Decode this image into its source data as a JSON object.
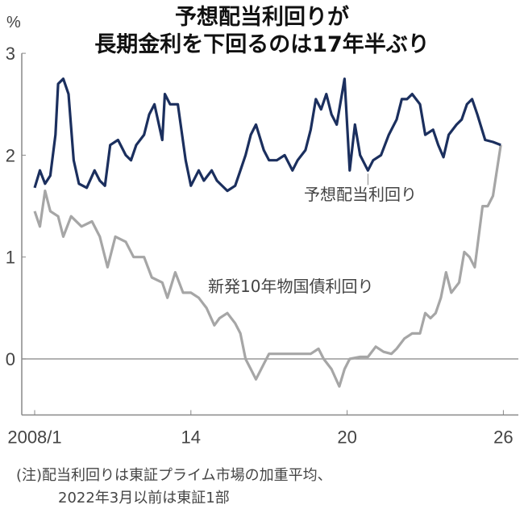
{
  "chart_data": {
    "type": "line",
    "title_lines": [
      "予想配当利回りが",
      "長期金利を下回るのは17年半ぶり"
    ],
    "y_unit": "%",
    "ylim": [
      -0.55,
      3
    ],
    "yticks": [
      0,
      1,
      2,
      3
    ],
    "xlim": [
      2007.95,
      2026.0
    ],
    "xticks": [
      {
        "value": 2008,
        "label": "2008/1"
      },
      {
        "value": 2014,
        "label": "14"
      },
      {
        "value": 2020,
        "label": "20"
      },
      {
        "value": 2026,
        "label": "26"
      }
    ],
    "grid": false,
    "zero_line": true,
    "series": [
      {
        "name": "予想配当利回り",
        "color": "#1b2f5e",
        "x": [
          2008.0,
          2008.2,
          2008.4,
          2008.6,
          2008.8,
          2008.9,
          2009.1,
          2009.3,
          2009.5,
          2009.7,
          2010.0,
          2010.3,
          2010.5,
          2010.7,
          2010.9,
          2011.2,
          2011.5,
          2011.7,
          2011.9,
          2012.2,
          2012.4,
          2012.6,
          2012.9,
          2013.0,
          2013.2,
          2013.5,
          2013.8,
          2014.0,
          2014.3,
          2014.5,
          2014.8,
          2015.0,
          2015.4,
          2015.7,
          2015.9,
          2016.1,
          2016.3,
          2016.5,
          2016.8,
          2017.0,
          2017.3,
          2017.6,
          2017.9,
          2018.1,
          2018.4,
          2018.6,
          2018.8,
          2019.0,
          2019.2,
          2019.4,
          2019.6,
          2019.9,
          2020.0,
          2020.1,
          2020.3,
          2020.5,
          2020.8,
          2021.0,
          2021.3,
          2021.6,
          2021.9,
          2022.1,
          2022.3,
          2022.5,
          2022.8,
          2023.0,
          2023.3,
          2023.5,
          2023.7,
          2023.9,
          2024.2,
          2024.4,
          2024.6,
          2024.8,
          2025.0,
          2025.3,
          2025.6,
          2025.9
        ],
        "values": [
          1.68,
          1.85,
          1.72,
          1.8,
          2.2,
          2.7,
          2.75,
          2.6,
          1.95,
          1.72,
          1.68,
          1.85,
          1.75,
          1.7,
          2.1,
          2.15,
          2.0,
          1.95,
          2.1,
          2.2,
          2.4,
          2.5,
          2.15,
          2.6,
          2.5,
          2.5,
          1.95,
          1.7,
          1.85,
          1.75,
          1.85,
          1.75,
          1.65,
          1.7,
          1.85,
          2.0,
          2.2,
          2.3,
          2.05,
          1.95,
          1.95,
          2.0,
          1.85,
          1.95,
          2.05,
          2.25,
          2.55,
          2.45,
          2.6,
          2.4,
          2.3,
          2.75,
          2.3,
          1.85,
          2.3,
          2.0,
          1.85,
          1.95,
          2.0,
          2.2,
          2.35,
          2.55,
          2.55,
          2.6,
          2.5,
          2.2,
          2.25,
          2.1,
          1.98,
          2.2,
          2.3,
          2.35,
          2.5,
          2.55,
          2.4,
          2.15,
          2.13,
          2.1
        ]
      },
      {
        "name": "新発10年物国債利回り",
        "color": "#a6a6a6",
        "x": [
          2008.0,
          2008.2,
          2008.4,
          2008.6,
          2008.9,
          2009.1,
          2009.4,
          2009.8,
          2010.2,
          2010.5,
          2010.8,
          2011.1,
          2011.5,
          2011.8,
          2012.2,
          2012.5,
          2012.9,
          2013.1,
          2013.4,
          2013.7,
          2014.0,
          2014.3,
          2014.6,
          2014.9,
          2015.1,
          2015.4,
          2015.7,
          2015.9,
          2016.1,
          2016.3,
          2016.5,
          2016.8,
          2017.0,
          2017.4,
          2017.8,
          2018.2,
          2018.6,
          2018.9,
          2019.1,
          2019.4,
          2019.7,
          2019.9,
          2020.1,
          2020.5,
          2020.8,
          2021.1,
          2021.4,
          2021.7,
          2021.9,
          2022.2,
          2022.5,
          2022.8,
          2023.0,
          2023.2,
          2023.4,
          2023.6,
          2023.8,
          2024.0,
          2024.3,
          2024.5,
          2024.7,
          2024.9,
          2025.2,
          2025.4,
          2025.6,
          2025.9
        ],
        "values": [
          1.45,
          1.3,
          1.65,
          1.45,
          1.4,
          1.2,
          1.4,
          1.3,
          1.35,
          1.2,
          0.9,
          1.2,
          1.15,
          1.0,
          1.0,
          0.8,
          0.75,
          0.6,
          0.85,
          0.65,
          0.65,
          0.6,
          0.5,
          0.33,
          0.4,
          0.45,
          0.35,
          0.25,
          0.0,
          -0.1,
          -0.2,
          -0.05,
          0.05,
          0.05,
          0.05,
          0.05,
          0.05,
          0.1,
          0.0,
          -0.1,
          -0.27,
          -0.1,
          0.0,
          0.02,
          0.02,
          0.12,
          0.07,
          0.05,
          0.1,
          0.2,
          0.25,
          0.25,
          0.45,
          0.4,
          0.45,
          0.6,
          0.85,
          0.65,
          0.75,
          1.05,
          1.0,
          0.9,
          1.5,
          1.5,
          1.6,
          2.1
        ]
      }
    ],
    "annotations": [
      "予想配当利回り",
      "新発10年物国債利回り"
    ]
  },
  "note_lines": [
    "(注)配当利回りは東証プライム市場の加重平均、",
    "2022年3月以前は東証1部"
  ]
}
